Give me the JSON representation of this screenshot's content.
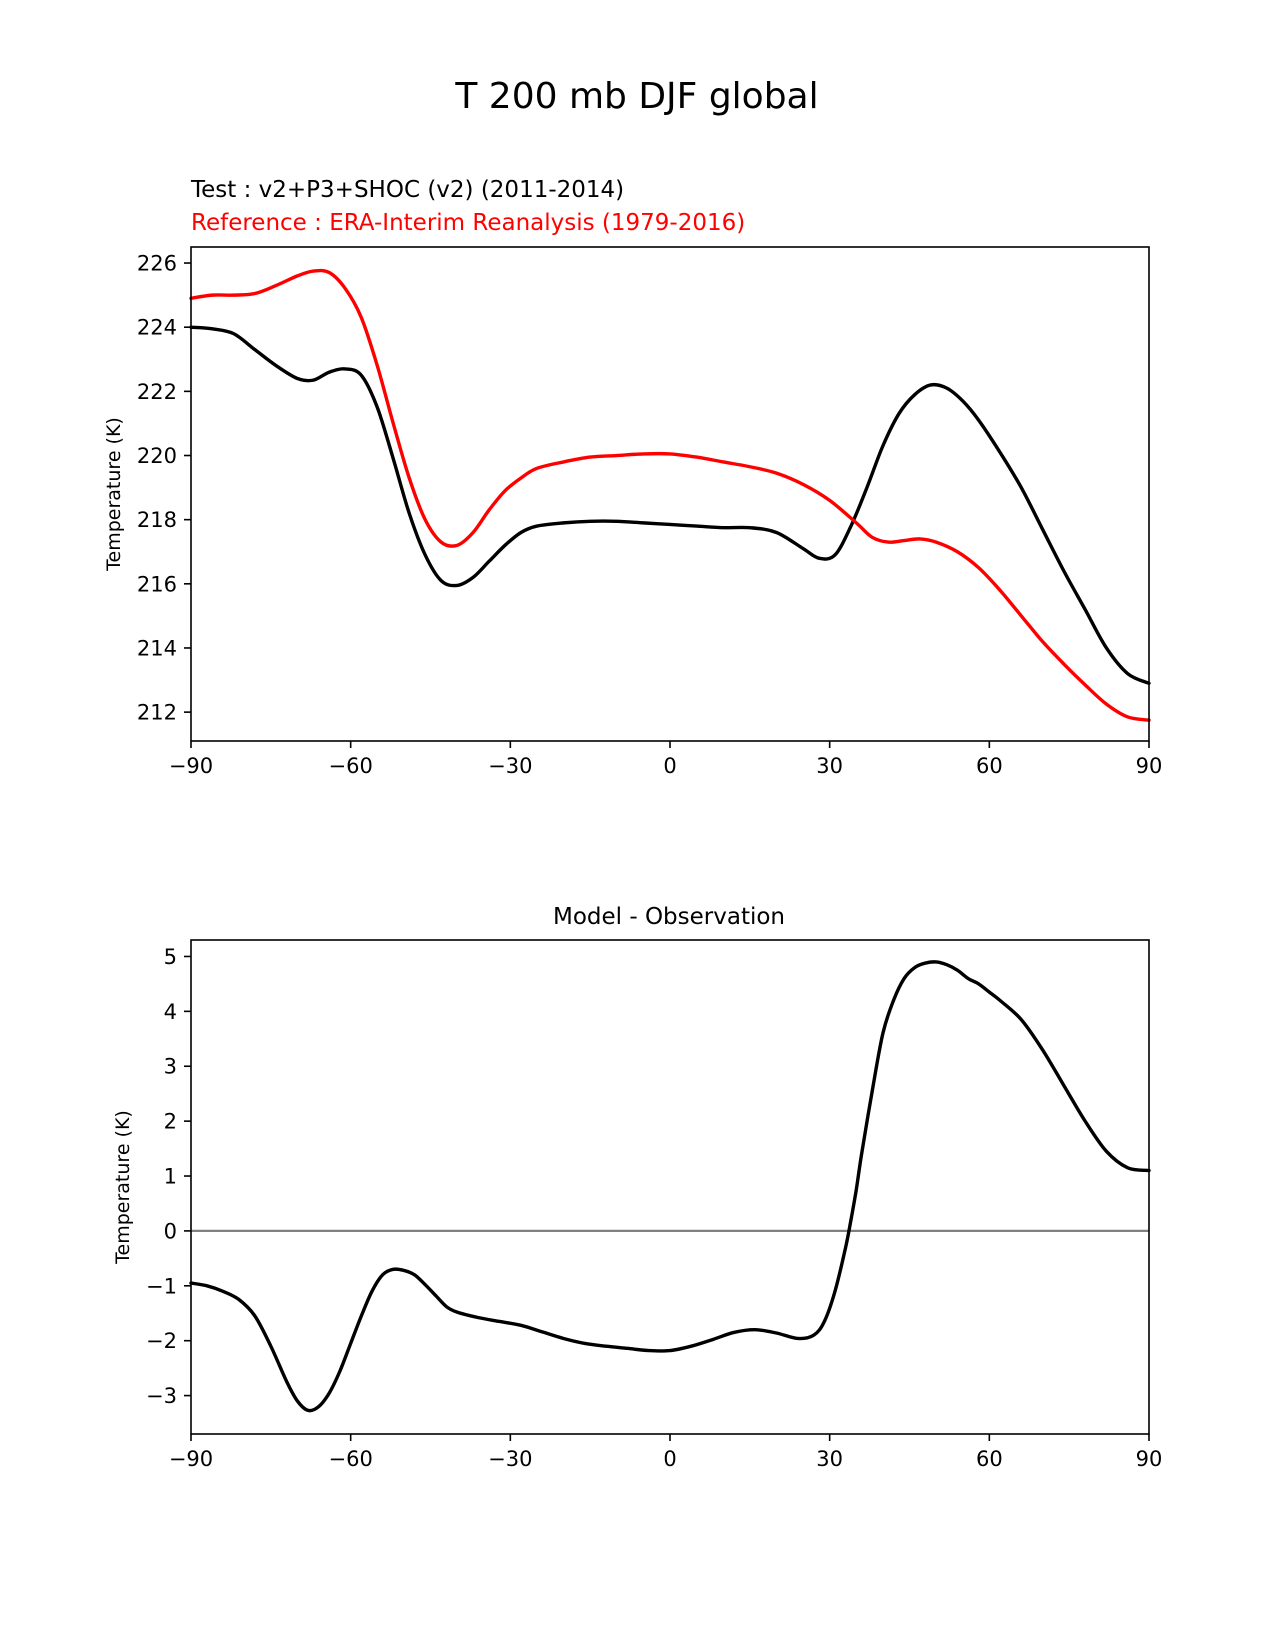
{
  "figure": {
    "suptitle": "T 200 mb DJF global"
  },
  "chart_data": [
    {
      "type": "line",
      "test_label": "Test : v2+P3+SHOC (v2) (2011-2014)",
      "reference_label": "Reference : ERA-Interim Reanalysis (1979-2016)",
      "xlabel": "",
      "ylabel": "Temperature (K)",
      "xlim": [
        -90,
        90
      ],
      "ylim": [
        211.1,
        226.5
      ],
      "xticks": [
        -90,
        -60,
        -30,
        0,
        30,
        60,
        90
      ],
      "xtick_labels": [
        "−90",
        "−60",
        "−30",
        "0",
        "30",
        "60",
        "90"
      ],
      "yticks": [
        212,
        214,
        216,
        218,
        220,
        222,
        224,
        226
      ],
      "ytick_labels": [
        "212",
        "214",
        "216",
        "218",
        "220",
        "222",
        "224",
        "226"
      ],
      "series": [
        {
          "name": "Test",
          "color": "#000000",
          "x": [
            -90,
            -86,
            -82,
            -78,
            -74,
            -70,
            -67,
            -64,
            -61,
            -58,
            -55,
            -52,
            -49,
            -46,
            -43,
            -40,
            -37,
            -34,
            -31,
            -28,
            -25,
            -20,
            -15,
            -10,
            -5,
            0,
            5,
            10,
            15,
            20,
            25,
            28,
            31,
            34,
            37,
            40,
            43,
            46,
            49,
            52,
            55,
            58,
            62,
            66,
            70,
            74,
            78,
            82,
            86,
            90
          ],
          "values": [
            224.0,
            223.95,
            223.8,
            223.3,
            222.8,
            222.4,
            222.35,
            222.6,
            222.7,
            222.5,
            221.5,
            219.9,
            218.2,
            216.9,
            216.1,
            215.95,
            216.2,
            216.7,
            217.2,
            217.6,
            217.8,
            217.9,
            217.95,
            217.95,
            217.9,
            217.85,
            217.8,
            217.75,
            217.75,
            217.6,
            217.1,
            216.8,
            216.9,
            217.8,
            219.0,
            220.3,
            221.3,
            221.9,
            222.2,
            222.1,
            221.7,
            221.1,
            220.1,
            219.0,
            217.7,
            216.4,
            215.2,
            214.0,
            213.2,
            212.9
          ]
        },
        {
          "name": "Reference",
          "color": "#ff0000",
          "x": [
            -90,
            -86,
            -82,
            -78,
            -74,
            -70,
            -67,
            -64,
            -61,
            -58,
            -55,
            -52,
            -49,
            -46,
            -43,
            -40,
            -37,
            -34,
            -31,
            -28,
            -25,
            -20,
            -15,
            -10,
            -5,
            0,
            5,
            10,
            15,
            20,
            25,
            30,
            35,
            38,
            41,
            44,
            47,
            50,
            54,
            58,
            62,
            66,
            70,
            74,
            78,
            82,
            86,
            90
          ],
          "values": [
            224.9,
            225.0,
            225.0,
            225.05,
            225.3,
            225.6,
            225.75,
            225.7,
            225.2,
            224.3,
            222.8,
            221.0,
            219.3,
            218.0,
            217.3,
            217.2,
            217.6,
            218.3,
            218.9,
            219.3,
            219.6,
            219.8,
            219.95,
            220.0,
            220.05,
            220.05,
            219.95,
            219.8,
            219.65,
            219.45,
            219.1,
            218.6,
            217.9,
            217.45,
            217.3,
            217.35,
            217.4,
            217.3,
            217.0,
            216.5,
            215.8,
            215.0,
            214.2,
            213.5,
            212.85,
            212.25,
            211.85,
            211.75
          ]
        }
      ]
    },
    {
      "type": "line",
      "title": "Model - Observation",
      "xlabel": "",
      "ylabel": "Temperature (K)",
      "xlim": [
        -90,
        90
      ],
      "ylim": [
        -3.7,
        5.3
      ],
      "xticks": [
        -90,
        -60,
        -30,
        0,
        30,
        60,
        90
      ],
      "xtick_labels": [
        "−90",
        "−60",
        "−30",
        "0",
        "30",
        "60",
        "90"
      ],
      "yticks": [
        -3,
        -2,
        -1,
        0,
        1,
        2,
        3,
        4,
        5
      ],
      "ytick_labels": [
        "−3",
        "−2",
        "−1",
        "0",
        "1",
        "2",
        "3",
        "4",
        "5"
      ],
      "zero_line": {
        "value": 0,
        "color": "#808080"
      },
      "series": [
        {
          "name": "Model - Observation",
          "color": "#000000",
          "x": [
            -90,
            -87,
            -84,
            -81,
            -78,
            -75,
            -72,
            -70,
            -68,
            -66,
            -64,
            -62,
            -60,
            -58,
            -56,
            -54,
            -52,
            -50,
            -48,
            -46,
            -44,
            -42,
            -40,
            -36,
            -32,
            -28,
            -24,
            -20,
            -16,
            -12,
            -8,
            -4,
            0,
            4,
            8,
            12,
            16,
            20,
            24,
            27,
            29,
            31,
            33,
            34,
            35,
            36,
            38,
            40,
            42,
            44,
            46,
            48,
            50,
            52,
            54,
            56,
            58,
            60,
            62,
            66,
            70,
            74,
            78,
            82,
            86,
            90
          ],
          "values": [
            -0.95,
            -1.0,
            -1.1,
            -1.25,
            -1.55,
            -2.1,
            -2.75,
            -3.1,
            -3.27,
            -3.2,
            -2.95,
            -2.55,
            -2.05,
            -1.55,
            -1.1,
            -0.8,
            -0.7,
            -0.72,
            -0.8,
            -0.98,
            -1.18,
            -1.38,
            -1.48,
            -1.58,
            -1.65,
            -1.72,
            -1.84,
            -1.96,
            -2.05,
            -2.1,
            -2.14,
            -2.18,
            -2.18,
            -2.1,
            -1.98,
            -1.85,
            -1.8,
            -1.86,
            -1.96,
            -1.9,
            -1.65,
            -1.1,
            -0.3,
            0.2,
            0.75,
            1.4,
            2.55,
            3.6,
            4.2,
            4.6,
            4.8,
            4.88,
            4.9,
            4.85,
            4.75,
            4.6,
            4.5,
            4.35,
            4.2,
            3.85,
            3.3,
            2.65,
            2.0,
            1.45,
            1.15,
            1.1
          ]
        }
      ]
    }
  ]
}
